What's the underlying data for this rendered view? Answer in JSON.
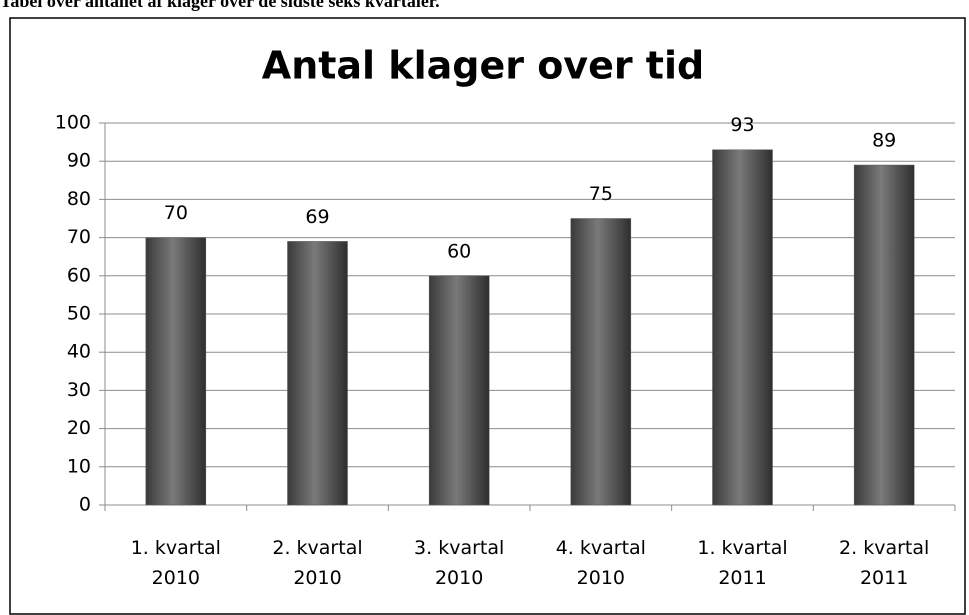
{
  "caption": "Tabel over antallet af klager over de sidste seks kvartaler.",
  "chart_data": {
    "type": "bar",
    "title": "Antal klager over tid",
    "categories": [
      "1. kvartal 2010",
      "2. kvartal 2010",
      "3. kvartal 2010",
      "4. kvartal 2010",
      "1. kvartal 2011",
      "2. kvartal 2011"
    ],
    "values": [
      70,
      69,
      60,
      75,
      93,
      89
    ],
    "color": "#595959",
    "ylim": [
      0,
      100
    ],
    "yticks": [
      0,
      10,
      20,
      30,
      40,
      50,
      60,
      70,
      80,
      90,
      100
    ],
    "grid": true
  }
}
